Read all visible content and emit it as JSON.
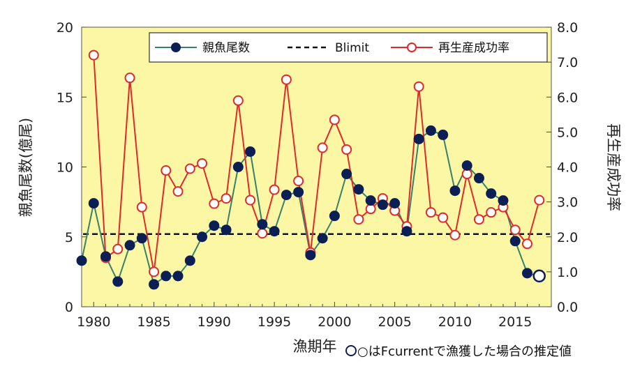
{
  "chart_data": {
    "type": "line",
    "xlabel": "漁期年",
    "ylabel_left": "親魚尾数(億尾)",
    "ylabel_right": "再生産成功率",
    "xlim": [
      1979,
      2018
    ],
    "ylim_left": [
      0,
      20
    ],
    "ylim_right": [
      0,
      8
    ],
    "x_ticks": [
      1980,
      1985,
      1990,
      1995,
      2000,
      2005,
      2010,
      2015
    ],
    "y_ticks_left": [
      "0",
      "5",
      "10",
      "15",
      "20"
    ],
    "y_ticks_right": [
      "0.0",
      "1.0",
      "2.0",
      "3.0",
      "4.0",
      "5.0",
      "6.0",
      "7.0",
      "8.0"
    ],
    "grid": false,
    "legend_position": "top-right",
    "background": "#fbf7a4",
    "colors": {
      "spawners": "#0b1f55",
      "spawners_line": "#37806b",
      "blimit": "#111111",
      "rps": "#e02a2a"
    },
    "series": [
      {
        "name": "親魚尾数",
        "axis": "left",
        "x": [
          1979,
          1980,
          1981,
          1982,
          1983,
          1984,
          1985,
          1986,
          1987,
          1988,
          1989,
          1990,
          1991,
          1992,
          1993,
          1994,
          1995,
          1996,
          1997,
          1998,
          1999,
          2000,
          2001,
          2002,
          2003,
          2004,
          2005,
          2006,
          2007,
          2008,
          2009,
          2010,
          2011,
          2012,
          2013,
          2014,
          2015,
          2016,
          2017
        ],
        "values": [
          3.3,
          7.4,
          3.6,
          1.8,
          4.4,
          4.9,
          1.6,
          2.2,
          2.2,
          3.3,
          5.0,
          5.8,
          5.5,
          10.0,
          11.1,
          5.9,
          5.4,
          8.0,
          8.2,
          3.7,
          4.9,
          6.5,
          9.5,
          8.4,
          7.6,
          7.3,
          7.4,
          5.4,
          12.0,
          12.6,
          12.3,
          8.3,
          10.1,
          9.2,
          8.1,
          7.6,
          4.7,
          2.4,
          2.2
        ],
        "estimated_last_point": true
      },
      {
        "name": "Blimit",
        "axis": "left",
        "value": 5.2
      },
      {
        "name": "再生産成功率",
        "axis": "right",
        "x": [
          1980,
          1981,
          1982,
          1983,
          1984,
          1985,
          1986,
          1987,
          1988,
          1989,
          1990,
          1991,
          1992,
          1993,
          1994,
          1995,
          1996,
          1997,
          1998,
          1999,
          2000,
          2001,
          2002,
          2003,
          2004,
          2005,
          2006,
          2007,
          2008,
          2009,
          2010,
          2011,
          2012,
          2013,
          2014,
          2015,
          2016,
          2017
        ],
        "values": [
          7.2,
          1.4,
          1.65,
          6.55,
          2.85,
          1.0,
          3.9,
          3.3,
          3.95,
          4.1,
          2.95,
          3.1,
          5.9,
          3.05,
          2.1,
          3.35,
          6.5,
          3.6,
          1.55,
          4.55,
          5.35,
          4.5,
          2.5,
          2.8,
          3.1,
          2.75,
          2.3,
          6.3,
          2.7,
          2.55,
          2.05,
          3.8,
          2.5,
          2.7,
          2.85,
          2.2,
          1.8,
          3.05
        ]
      }
    ],
    "legend": [
      "親魚尾数",
      "Blimit",
      "再生産成功率"
    ],
    "note": "○はFcurrentで漁獲した場合の推定値"
  }
}
